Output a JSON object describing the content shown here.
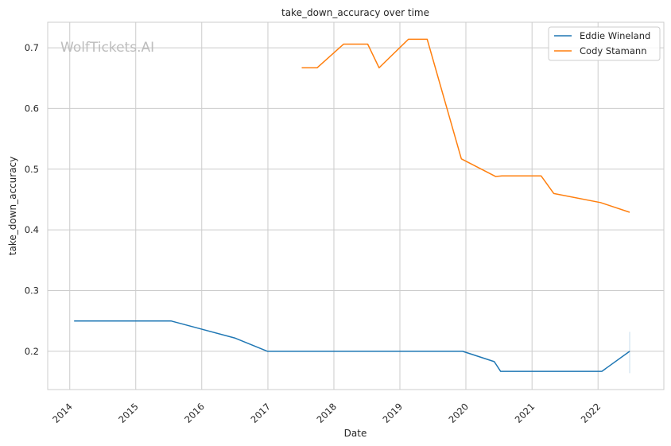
{
  "chart_data": {
    "type": "line",
    "title": "take_down_accuracy over time",
    "xlabel": "Date",
    "ylabel": "take_down_accuracy",
    "watermark": "WolfTickets.AI",
    "x_ticks": [
      "2014",
      "2015",
      "2016",
      "2017",
      "2018",
      "2019",
      "2020",
      "2021",
      "2022"
    ],
    "y_ticks": [
      "0.2",
      "0.3",
      "0.4",
      "0.5",
      "0.6",
      "0.7"
    ],
    "xlim": [
      "2013-09-01",
      "2022-12-31"
    ],
    "ylim": [
      0.137,
      0.742
    ],
    "grid": true,
    "legend_position": "top-right",
    "series": [
      {
        "name": "Eddie Wineland",
        "color": "#1f77b4",
        "points": [
          [
            "2014-01-25",
            0.25
          ],
          [
            "2015-07-15",
            0.25
          ],
          [
            "2016-07-01",
            0.222
          ],
          [
            "2016-12-30",
            0.2
          ],
          [
            "2019-12-14",
            0.2
          ],
          [
            "2020-06-06",
            0.183
          ],
          [
            "2020-07-11",
            0.167
          ],
          [
            "2022-01-22",
            0.167
          ],
          [
            "2022-06-25",
            0.2
          ]
        ],
        "error_bar": {
          "x": "2022-06-25",
          "low": 0.164,
          "high": 0.232
        }
      },
      {
        "name": "Cody Stamann",
        "color": "#ff7f0e",
        "points": [
          [
            "2017-07-07",
            0.667
          ],
          [
            "2017-09-30",
            0.667
          ],
          [
            "2018-02-24",
            0.706
          ],
          [
            "2018-07-07",
            0.706
          ],
          [
            "2018-09-08",
            0.667
          ],
          [
            "2019-02-17",
            0.714
          ],
          [
            "2019-06-01",
            0.714
          ],
          [
            "2019-12-07",
            0.517
          ],
          [
            "2020-06-13",
            0.488
          ],
          [
            "2020-07-18",
            0.489
          ],
          [
            "2021-02-20",
            0.489
          ],
          [
            "2021-05-01",
            0.46
          ],
          [
            "2022-01-15",
            0.445
          ],
          [
            "2022-06-25",
            0.429
          ]
        ]
      }
    ]
  }
}
